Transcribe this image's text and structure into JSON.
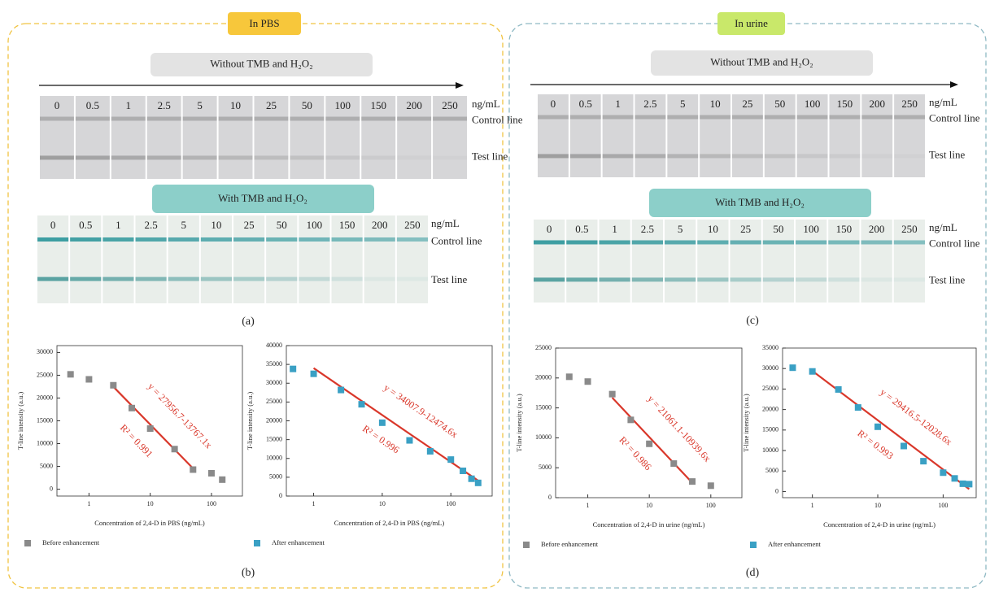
{
  "panels": [
    {
      "badge": "In PBS",
      "without_label": "Without TMB and H₂O₂",
      "with_label": "With TMB and H₂O₂",
      "concentrations": [
        "0",
        "0.5",
        "1",
        "2.5",
        "5",
        "10",
        "25",
        "50",
        "100",
        "150",
        "200",
        "250"
      ],
      "unit": "ng/mL",
      "control_line": "Control line",
      "test_line": "Test line",
      "strips_label": "(a)",
      "charts_label": "(b)"
    },
    {
      "badge": "In urine",
      "without_label": "Without TMB and H₂O₂",
      "with_label": "With TMB and H₂O₂",
      "concentrations": [
        "0",
        "0.5",
        "1",
        "2.5",
        "5",
        "10",
        "25",
        "50",
        "100",
        "150",
        "200",
        "250"
      ],
      "unit": "ng/mL",
      "control_line": "Control line",
      "test_line": "Test line",
      "strips_label": "(c)",
      "charts_label": "(d)"
    }
  ],
  "chart_data": [
    {
      "type": "scatter",
      "x_label": "Concentration of 2,4-D in PBS (ng/mL)",
      "y_label": "T-line intensity (a.u.)",
      "x_scale": "log",
      "x": [
        0.5,
        1,
        2.5,
        5,
        10,
        25,
        50,
        100,
        150
      ],
      "series": [
        {
          "name": "Before enhancement",
          "color": "#8a8a8a",
          "values": [
            25200,
            24100,
            22800,
            17800,
            13300,
            8800,
            4300,
            3500,
            2100
          ]
        }
      ],
      "xlim": [
        0.3,
        320
      ],
      "ylim": [
        -1500,
        31500
      ],
      "xticks": [
        1,
        10,
        100
      ],
      "yticks": [
        0,
        5000,
        10000,
        15000,
        20000,
        25000,
        30000
      ],
      "fit": {
        "equation": "y = 27956.7-13767.1x",
        "r2": "R² = 0.991",
        "intercept": 27956.7,
        "slope": -13767.1,
        "x": [
          2.5,
          50
        ],
        "color": "#d9372a"
      }
    },
    {
      "type": "scatter",
      "x_label": "Concentration of 2,4-D in PBS (ng/mL)",
      "y_label": "T-line intensity (a.u.)",
      "x_scale": "log",
      "x": [
        0.5,
        1,
        2.5,
        5,
        10,
        25,
        50,
        100,
        150,
        200,
        250
      ],
      "series": [
        {
          "name": "After enhancement",
          "color": "#3aa0c4",
          "values": [
            33800,
            32500,
            28200,
            24400,
            19500,
            14800,
            11900,
            9700,
            6700,
            4600,
            3500
          ]
        }
      ],
      "xlim": [
        0.4,
        400
      ],
      "ylim": [
        0,
        40000
      ],
      "xticks": [
        1,
        10,
        100
      ],
      "yticks": [
        0,
        5000,
        10000,
        15000,
        20000,
        25000,
        30000,
        35000,
        40000
      ],
      "fit": {
        "equation": "y = 34007.9-12474.6x",
        "r2": "R² = 0.996",
        "intercept": 34007.9,
        "slope": -12474.6,
        "x": [
          1,
          250
        ],
        "color": "#d9372a"
      }
    },
    {
      "type": "scatter",
      "x_label": "Concentration of 2,4-D in urine (ng/mL)",
      "y_label": "T-line intensity (a.u.)",
      "x_scale": "log",
      "x": [
        0.5,
        1,
        2.5,
        5,
        10,
        25,
        50,
        100
      ],
      "series": [
        {
          "name": "Before enhancement",
          "color": "#8a8a8a",
          "values": [
            20200,
            19400,
            17300,
            13000,
            9000,
            5700,
            2700,
            2000
          ]
        }
      ],
      "xlim": [
        0.3,
        320
      ],
      "ylim": [
        0,
        25000
      ],
      "xticks": [
        1,
        10,
        100
      ],
      "yticks": [
        0,
        5000,
        10000,
        15000,
        20000,
        25000
      ],
      "fit": {
        "equation": "y = 21061.1-10939.6x",
        "r2": "R² = 0.986",
        "intercept": 21061.1,
        "slope": -10939.6,
        "x": [
          2.5,
          50
        ],
        "color": "#d9372a"
      }
    },
    {
      "type": "scatter",
      "x_label": "Concentration of 2,4-D in urine (ng/mL)",
      "y_label": "T-line intensity (a.u.)",
      "x_scale": "log",
      "x": [
        0.5,
        1,
        2.5,
        5,
        10,
        25,
        50,
        100,
        150,
        200,
        250
      ],
      "series": [
        {
          "name": "After enhancement",
          "color": "#3aa0c4",
          "values": [
            30200,
            29300,
            24900,
            20500,
            15800,
            11100,
            7400,
            4600,
            3200,
            1900,
            1800
          ]
        }
      ],
      "xlim": [
        0.35,
        320
      ],
      "ylim": [
        -1500,
        35000
      ],
      "xticks": [
        1,
        10,
        100
      ],
      "yticks": [
        0,
        5000,
        10000,
        15000,
        20000,
        25000,
        30000,
        35000
      ],
      "fit": {
        "equation": "y = 29416.5-12028.6x",
        "r2": "R² = 0.993",
        "intercept": 29416.5,
        "slope": -12028.6,
        "x": [
          1,
          250
        ],
        "color": "#d9372a"
      }
    }
  ]
}
